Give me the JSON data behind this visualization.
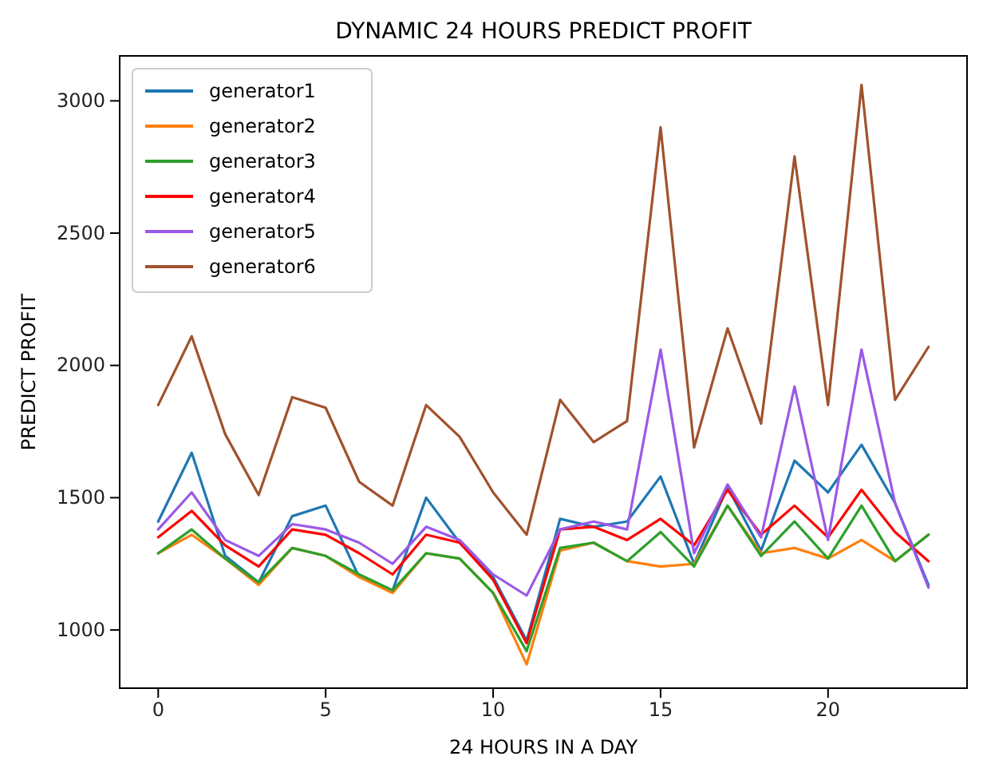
{
  "chart_data": {
    "type": "line",
    "title": "DYNAMIC 24 HOURS PREDICT PROFIT",
    "xlabel": "24 HOURS IN A DAY",
    "ylabel": "PREDICT PROFIT",
    "x": [
      0,
      1,
      2,
      3,
      4,
      5,
      6,
      7,
      8,
      9,
      10,
      11,
      12,
      13,
      14,
      15,
      16,
      17,
      18,
      19,
      20,
      21,
      22,
      23
    ],
    "xlim": [
      -1.15,
      24.15
    ],
    "xticks": [
      0,
      5,
      10,
      15,
      20
    ],
    "ylim": [
      780,
      3170
    ],
    "yticks": [
      1000,
      1500,
      2000,
      2500,
      3000
    ],
    "legend": "top left",
    "grid": false,
    "line_style": "solid",
    "marker": "none",
    "series": [
      {
        "name": "generator1",
        "color": "#1f77b4",
        "values": [
          1410,
          1670,
          1280,
          1180,
          1430,
          1470,
          1200,
          1150,
          1500,
          1330,
          1200,
          960,
          1420,
          1390,
          1410,
          1580,
          1250,
          1540,
          1300,
          1640,
          1520,
          1700,
          1480,
          1170
        ]
      },
      {
        "name": "generator2",
        "color": "#ff7f0e",
        "values": [
          1290,
          1360,
          1270,
          1170,
          1310,
          1280,
          1200,
          1140,
          1290,
          1270,
          1140,
          870,
          1300,
          1330,
          1260,
          1240,
          1250,
          1470,
          1290,
          1310,
          1270,
          1340,
          1260,
          1360
        ]
      },
      {
        "name": "generator3",
        "color": "#2ca02c",
        "values": [
          1290,
          1380,
          1270,
          1180,
          1310,
          1280,
          1210,
          1150,
          1290,
          1270,
          1140,
          920,
          1310,
          1330,
          1260,
          1370,
          1240,
          1470,
          1280,
          1410,
          1270,
          1470,
          1260,
          1360
        ]
      },
      {
        "name": "generator4",
        "color": "#ff0000",
        "values": [
          1350,
          1450,
          1320,
          1240,
          1380,
          1360,
          1290,
          1210,
          1360,
          1330,
          1190,
          950,
          1380,
          1390,
          1340,
          1420,
          1320,
          1530,
          1360,
          1470,
          1350,
          1530,
          1370,
          1260
        ]
      },
      {
        "name": "generator5",
        "color": "#9b59e6",
        "values": [
          1380,
          1520,
          1340,
          1280,
          1400,
          1380,
          1330,
          1250,
          1390,
          1340,
          1210,
          1130,
          1380,
          1410,
          1380,
          2060,
          1290,
          1550,
          1350,
          1920,
          1340,
          2060,
          1480,
          1160
        ]
      },
      {
        "name": "generator6",
        "color": "#a0522d",
        "values": [
          1850,
          2110,
          1740,
          1510,
          1880,
          1840,
          1560,
          1470,
          1850,
          1730,
          1520,
          1360,
          1870,
          1710,
          1790,
          2900,
          1690,
          2140,
          1780,
          2790,
          1850,
          3060,
          1870,
          2070
        ]
      }
    ]
  }
}
